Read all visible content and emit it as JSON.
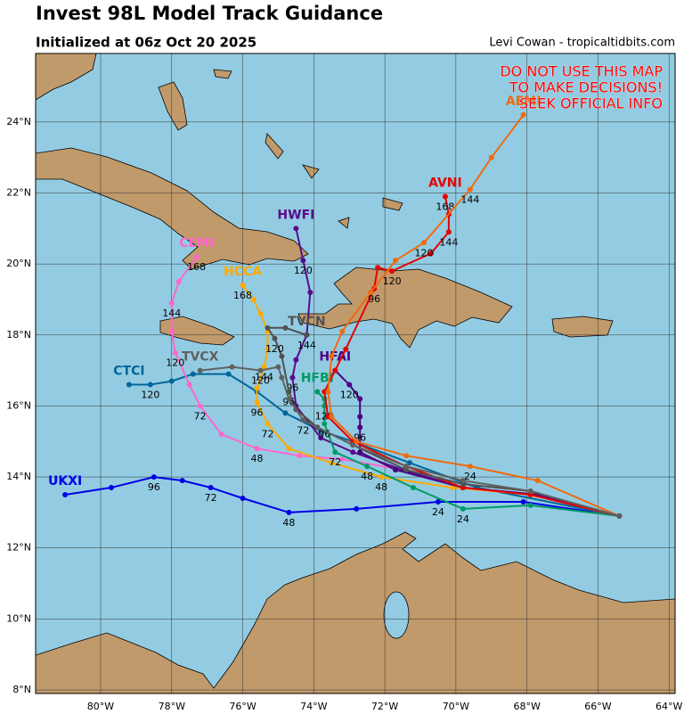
{
  "chart_data": {
    "type": "track",
    "title": "Invest 98L Model Track Guidance",
    "subtitle": "Initialized at 06z Oct 20 2025",
    "credit": "Levi Cowan - tropicaltidbits.com",
    "warning": [
      "DO NOT USE THIS MAP",
      "TO MAKE DECISIONS!",
      "SEEK OFFICIAL INFO"
    ],
    "xlim": [
      -81.83,
      -63.83
    ],
    "ylim": [
      7.9,
      25.93
    ],
    "grid": true,
    "xticks": [
      {
        "value": -80,
        "label": "80°W"
      },
      {
        "value": -78,
        "label": "78°W"
      },
      {
        "value": -76,
        "label": "76°W"
      },
      {
        "value": -74,
        "label": "74°W"
      },
      {
        "value": -72,
        "label": "72°W"
      },
      {
        "value": -70,
        "label": "70°W"
      },
      {
        "value": -68,
        "label": "68°W"
      },
      {
        "value": -66,
        "label": "66°W"
      },
      {
        "value": -64,
        "label": "64°W"
      }
    ],
    "yticks": [
      {
        "value": 8,
        "label": "8°N"
      },
      {
        "value": 10,
        "label": "10°N"
      },
      {
        "value": 12,
        "label": "12°N"
      },
      {
        "value": 14,
        "label": "14°N"
      },
      {
        "value": 16,
        "label": "16°N"
      },
      {
        "value": 18,
        "label": "18°N"
      },
      {
        "value": 20,
        "label": "20°N"
      },
      {
        "value": 22,
        "label": "22°N"
      },
      {
        "value": 24,
        "label": "24°N"
      }
    ],
    "series": [
      {
        "name": "UKXI",
        "color": "#0000e6",
        "x": [
          -65.4,
          -68.1,
          -70.5,
          -72.8,
          -74.7,
          -76.0,
          -76.9,
          -77.7,
          -78.5,
          -79.7,
          -81.0
        ],
        "values": [
          12.9,
          13.3,
          13.3,
          13.1,
          13.0,
          13.4,
          13.7,
          13.9,
          14.0,
          13.7,
          13.5
        ],
        "point_labels": [
          null,
          null,
          24,
          null,
          48,
          null,
          72,
          null,
          96,
          null,
          null
        ]
      },
      {
        "name": "CTCI",
        "color": "#006699",
        "x": [
          -65.4,
          -69.4,
          -71.3,
          -72.9,
          -73.8,
          -74.8,
          -75.6,
          -76.4,
          -77.4,
          -78.0,
          -78.6,
          -79.2
        ],
        "values": [
          12.9,
          13.7,
          14.4,
          15.0,
          15.3,
          15.8,
          16.4,
          16.9,
          16.9,
          16.7,
          16.6,
          16.6
        ],
        "point_labels": [
          null,
          null,
          null,
          null,
          null,
          null,
          null,
          null,
          null,
          null,
          120,
          null
        ]
      },
      {
        "name": "CEMI",
        "color": "#ff66cc",
        "x": [
          -65.4,
          -67.9,
          -69.8,
          -71.5,
          -73.2,
          -74.4,
          -75.6,
          -76.6,
          -77.2,
          -77.5,
          -77.9,
          -78.0,
          -78.0,
          -77.8,
          -77.3
        ],
        "values": [
          12.9,
          13.5,
          13.7,
          14.2,
          14.5,
          14.6,
          14.8,
          15.2,
          16.0,
          16.6,
          17.5,
          18.1,
          18.9,
          19.5,
          20.2
        ],
        "point_labels": [
          null,
          null,
          null,
          null,
          null,
          null,
          48,
          null,
          72,
          null,
          120,
          null,
          144,
          null,
          168
        ]
      },
      {
        "name": "HCCA",
        "color": "#ffaa00",
        "x": [
          -65.4,
          -67.8,
          -70.1,
          -72.1,
          -73.5,
          -74.7,
          -75.3,
          -75.6,
          -75.6,
          -75.4,
          -75.3,
          -75.3,
          -75.5,
          -75.7,
          -76.0
        ],
        "values": [
          12.9,
          13.5,
          13.7,
          14.0,
          14.4,
          14.8,
          15.5,
          16.1,
          16.5,
          17.1,
          17.6,
          18.1,
          18.6,
          19.0,
          19.4
        ],
        "point_labels": [
          null,
          null,
          null,
          48,
          null,
          null,
          72,
          96,
          null,
          144,
          null,
          null,
          null,
          null,
          168
        ]
      },
      {
        "name": "HWFI",
        "color": "#5a0a8c",
        "x": [
          -65.4,
          -67.7,
          -69.8,
          -71.5,
          -72.9,
          -73.8,
          -74.5,
          -74.6,
          -74.5,
          -74.2,
          -74.1,
          -74.3,
          -74.5
        ],
        "values": [
          12.9,
          13.5,
          13.7,
          14.2,
          14.7,
          15.1,
          16.0,
          16.8,
          17.3,
          18.0,
          19.2,
          20.1,
          21.0
        ],
        "point_labels": [
          null,
          null,
          null,
          null,
          null,
          null,
          null,
          96,
          null,
          null,
          null,
          120,
          null
        ]
      },
      {
        "name": "HFAI",
        "color": "#4b0082",
        "x": [
          -65.4,
          -67.7,
          -69.8,
          -71.7,
          -72.7,
          -72.7,
          -72.7,
          -72.7,
          -73.0,
          -73.4
        ],
        "values": [
          12.9,
          13.5,
          13.7,
          14.2,
          14.7,
          15.4,
          15.7,
          16.2,
          16.6,
          17.0
        ],
        "point_labels": [
          null,
          null,
          null,
          null,
          null,
          96,
          null,
          null,
          120,
          null
        ]
      },
      {
        "name": "HFBI",
        "color": "#009966",
        "x": [
          -65.4,
          -67.9,
          -69.8,
          -71.2,
          -72.5,
          -73.4,
          -73.7,
          -73.7,
          -73.7,
          -73.9
        ],
        "values": [
          12.9,
          13.2,
          13.1,
          13.7,
          14.3,
          14.7,
          15.5,
          16.0,
          16.2,
          16.4
        ],
        "point_labels": [
          null,
          null,
          24,
          null,
          48,
          72,
          96,
          120,
          null,
          null
        ]
      },
      {
        "name": "AVNI",
        "color": "#e60000",
        "x": [
          -65.4,
          -67.9,
          -69.8,
          -71.4,
          -72.9,
          -73.6,
          -73.7,
          -73.4,
          -73.1,
          -72.3,
          -72.2,
          -71.8,
          -70.7,
          -70.2,
          -70.2,
          -70.3
        ],
        "values": [
          12.9,
          13.5,
          13.7,
          14.3,
          15.0,
          15.7,
          16.4,
          17.0,
          17.6,
          19.3,
          19.9,
          19.8,
          20.3,
          20.9,
          21.4,
          21.9
        ],
        "point_labels": [
          null,
          null,
          null,
          null,
          null,
          null,
          null,
          null,
          null,
          96,
          null,
          120,
          null,
          144,
          null,
          168
        ]
      },
      {
        "name": "AEMI",
        "color": "#f06a0f",
        "x": [
          -65.4,
          -67.7,
          -69.6,
          -71.4,
          -72.8,
          -73.5,
          -73.6,
          -73.5,
          -73.2,
          -72.4,
          -71.7,
          -70.9,
          -69.6,
          -69.0,
          -68.1
        ],
        "values": [
          12.9,
          13.9,
          14.3,
          14.6,
          15.0,
          15.7,
          16.4,
          17.4,
          18.1,
          19.2,
          20.1,
          20.6,
          22.1,
          23.0,
          24.2
        ],
        "point_labels": [
          null,
          null,
          24,
          null,
          null,
          null,
          null,
          null,
          null,
          null,
          null,
          120,
          144,
          null,
          null
        ]
      },
      {
        "name": "TVCN",
        "color": "#505050",
        "x": [
          -65.4,
          -67.9,
          -69.8,
          -71.4,
          -72.9,
          -73.9,
          -74.5,
          -74.7,
          -74.9,
          -75.1,
          -75.3,
          -74.8,
          -74.2
        ],
        "values": [
          12.9,
          13.6,
          13.8,
          14.2,
          14.9,
          15.4,
          15.9,
          16.4,
          17.4,
          17.9,
          18.2,
          18.2,
          18.0
        ],
        "point_labels": [
          null,
          null,
          null,
          null,
          null,
          null,
          null,
          96,
          null,
          120,
          null,
          null,
          144
        ]
      },
      {
        "name": "TVCX",
        "color": "#606060",
        "x": [
          -65.4,
          -67.9,
          -69.8,
          -71.4,
          -72.9,
          -74.3,
          -74.7,
          -74.9,
          -75.0,
          -75.5,
          -76.3,
          -77.2
        ],
        "values": [
          12.9,
          13.6,
          13.9,
          14.3,
          14.9,
          15.6,
          16.2,
          16.8,
          17.1,
          17.0,
          17.1,
          17.0
        ],
        "point_labels": [
          null,
          null,
          null,
          null,
          null,
          72,
          null,
          null,
          null,
          120,
          null,
          null
        ]
      }
    ]
  }
}
